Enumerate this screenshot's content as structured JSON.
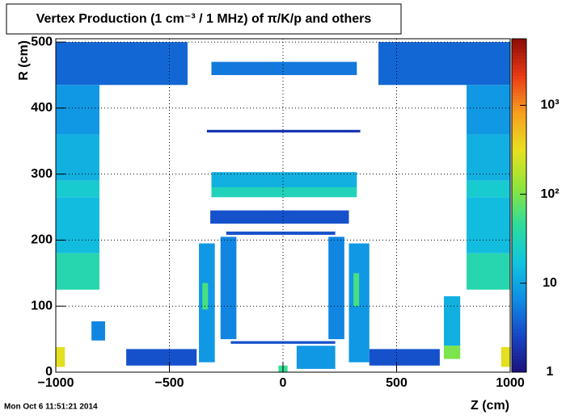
{
  "chart_data": {
    "type": "heatmap",
    "title": "Vertex Production (1 cm⁻³ / 1 MHz) of  π/K/p and others",
    "x_label": "Z (cm)",
    "y_label": "R (cm)",
    "timestamp": "Mon Oct  6 11:51:21 2014",
    "xlim": [
      -1000,
      1000
    ],
    "ylim": [
      0,
      505
    ],
    "zlim": [
      1,
      5600
    ],
    "xticks": [
      {
        "value": -1000,
        "label": "−1000"
      },
      {
        "value": -500,
        "label": "−500"
      },
      0,
      500,
      1000
    ],
    "yticks": [
      0,
      100,
      200,
      300,
      400,
      500
    ],
    "zticks": [
      1,
      10,
      {
        "value": 100,
        "label": "10²"
      },
      {
        "value": 1000,
        "label": "10³"
      }
    ],
    "z_log": true,
    "grid": true,
    "palette": [
      "#1c0f7a",
      "#1747c8",
      "#0f8fe6",
      "#12c6dd",
      "#2fdc9a",
      "#8fe63a",
      "#e8e020",
      "#f7a020",
      "#ea3a16",
      "#8c0c08"
    ],
    "cells": [
      {
        "x": [
          -1000,
          -420
        ],
        "y": [
          435,
          500
        ],
        "z": 4
      },
      {
        "x": [
          -1000,
          -808
        ],
        "y": [
          360,
          435
        ],
        "z": 8
      },
      {
        "x": [
          -1000,
          -808
        ],
        "y": [
          290,
          360
        ],
        "z": 12
      },
      {
        "x": [
          -1000,
          -808
        ],
        "y": [
          265,
          290
        ],
        "z": 22
      },
      {
        "x": [
          -1000,
          -808
        ],
        "y": [
          180,
          265
        ],
        "z": 15
      },
      {
        "x": [
          -1000,
          -808
        ],
        "y": [
          125,
          180
        ],
        "z": 35
      },
      {
        "x": [
          420,
          1000
        ],
        "y": [
          435,
          500
        ],
        "z": 4
      },
      {
        "x": [
          808,
          1000
        ],
        "y": [
          360,
          435
        ],
        "z": 8
      },
      {
        "x": [
          808,
          1000
        ],
        "y": [
          290,
          360
        ],
        "z": 12
      },
      {
        "x": [
          808,
          1000
        ],
        "y": [
          265,
          290
        ],
        "z": 22
      },
      {
        "x": [
          808,
          1000
        ],
        "y": [
          180,
          265
        ],
        "z": 15
      },
      {
        "x": [
          808,
          1000
        ],
        "y": [
          125,
          180
        ],
        "z": 35
      },
      {
        "x": [
          -315,
          325
        ],
        "y": [
          450,
          470
        ],
        "z": 5
      },
      {
        "x": [
          -335,
          340
        ],
        "y": [
          363,
          367
        ],
        "z": 2
      },
      {
        "x": [
          -315,
          325
        ],
        "y": [
          280,
          303
        ],
        "z": 12
      },
      {
        "x": [
          -315,
          325
        ],
        "y": [
          265,
          280
        ],
        "z": 30
      },
      {
        "x": [
          -320,
          290
        ],
        "y": [
          225,
          245
        ],
        "z": 3
      },
      {
        "x": [
          -250,
          230
        ],
        "y": [
          208,
          213
        ],
        "z": 3
      },
      {
        "x": [
          -275,
          -205
        ],
        "y": [
          50,
          205
        ],
        "z": 6
      },
      {
        "x": [
          200,
          270
        ],
        "y": [
          50,
          205
        ],
        "z": 6
      },
      {
        "x": [
          -370,
          -300
        ],
        "y": [
          15,
          195
        ],
        "z": 8
      },
      {
        "x": [
          -355,
          -330
        ],
        "y": [
          95,
          135
        ],
        "z": 60
      },
      {
        "x": [
          290,
          380
        ],
        "y": [
          15,
          195
        ],
        "z": 8
      },
      {
        "x": [
          310,
          335
        ],
        "y": [
          100,
          150
        ],
        "z": 60
      },
      {
        "x": [
          -230,
          230
        ],
        "y": [
          43,
          47
        ],
        "z": 3
      },
      {
        "x": [
          -843,
          -783
        ],
        "y": [
          48,
          77
        ],
        "z": 6
      },
      {
        "x": [
          708,
          780
        ],
        "y": [
          40,
          115
        ],
        "z": 12
      },
      {
        "x": [
          708,
          780
        ],
        "y": [
          20,
          40
        ],
        "z": 100
      },
      {
        "x": [
          -1000,
          -960
        ],
        "y": [
          8,
          38
        ],
        "z": 300
      },
      {
        "x": [
          960,
          1000
        ],
        "y": [
          8,
          38
        ],
        "z": 300
      },
      {
        "x": [
          -690,
          -380
        ],
        "y": [
          10,
          35
        ],
        "z": 3
      },
      {
        "x": [
          380,
          690
        ],
        "y": [
          10,
          35
        ],
        "z": 3
      },
      {
        "x": [
          60,
          230
        ],
        "y": [
          5,
          40
        ],
        "z": 8
      },
      {
        "x": [
          -20,
          20
        ],
        "y": [
          0,
          10
        ],
        "z": 50
      }
    ]
  }
}
